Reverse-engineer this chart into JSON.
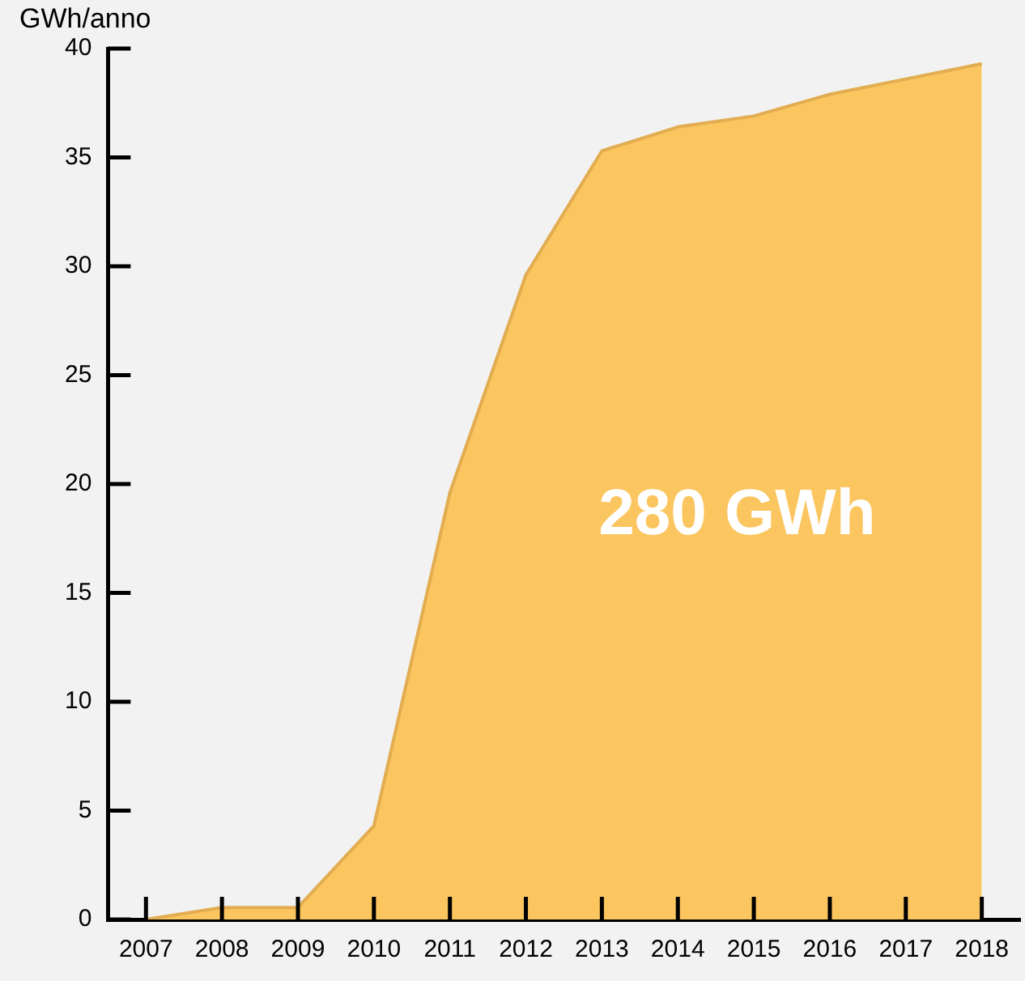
{
  "chart_data": {
    "type": "area",
    "ylabel": "GWh/anno",
    "x": [
      2007,
      2008,
      2009,
      2010,
      2011,
      2012,
      2013,
      2014,
      2015,
      2016,
      2017,
      2018
    ],
    "series": [
      {
        "color": "#fbc55f",
        "values": [
          0,
          0.55,
          0.55,
          4.3,
          19.6,
          29.6,
          35.3,
          36.4,
          36.9,
          37.9,
          38.6,
          39.3
        ]
      }
    ],
    "xlim": [
      2006.5,
      2018.5
    ],
    "xticks": [
      2007,
      2008,
      2009,
      2010,
      2011,
      2012,
      2013,
      2014,
      2015,
      2016,
      2017,
      2018
    ],
    "ylim": [
      0,
      40
    ],
    "yticks": [
      0,
      5,
      10,
      15,
      20,
      25,
      30,
      35,
      40
    ],
    "grid": false,
    "legend": false,
    "annotations": [
      "280 GWh"
    ]
  }
}
